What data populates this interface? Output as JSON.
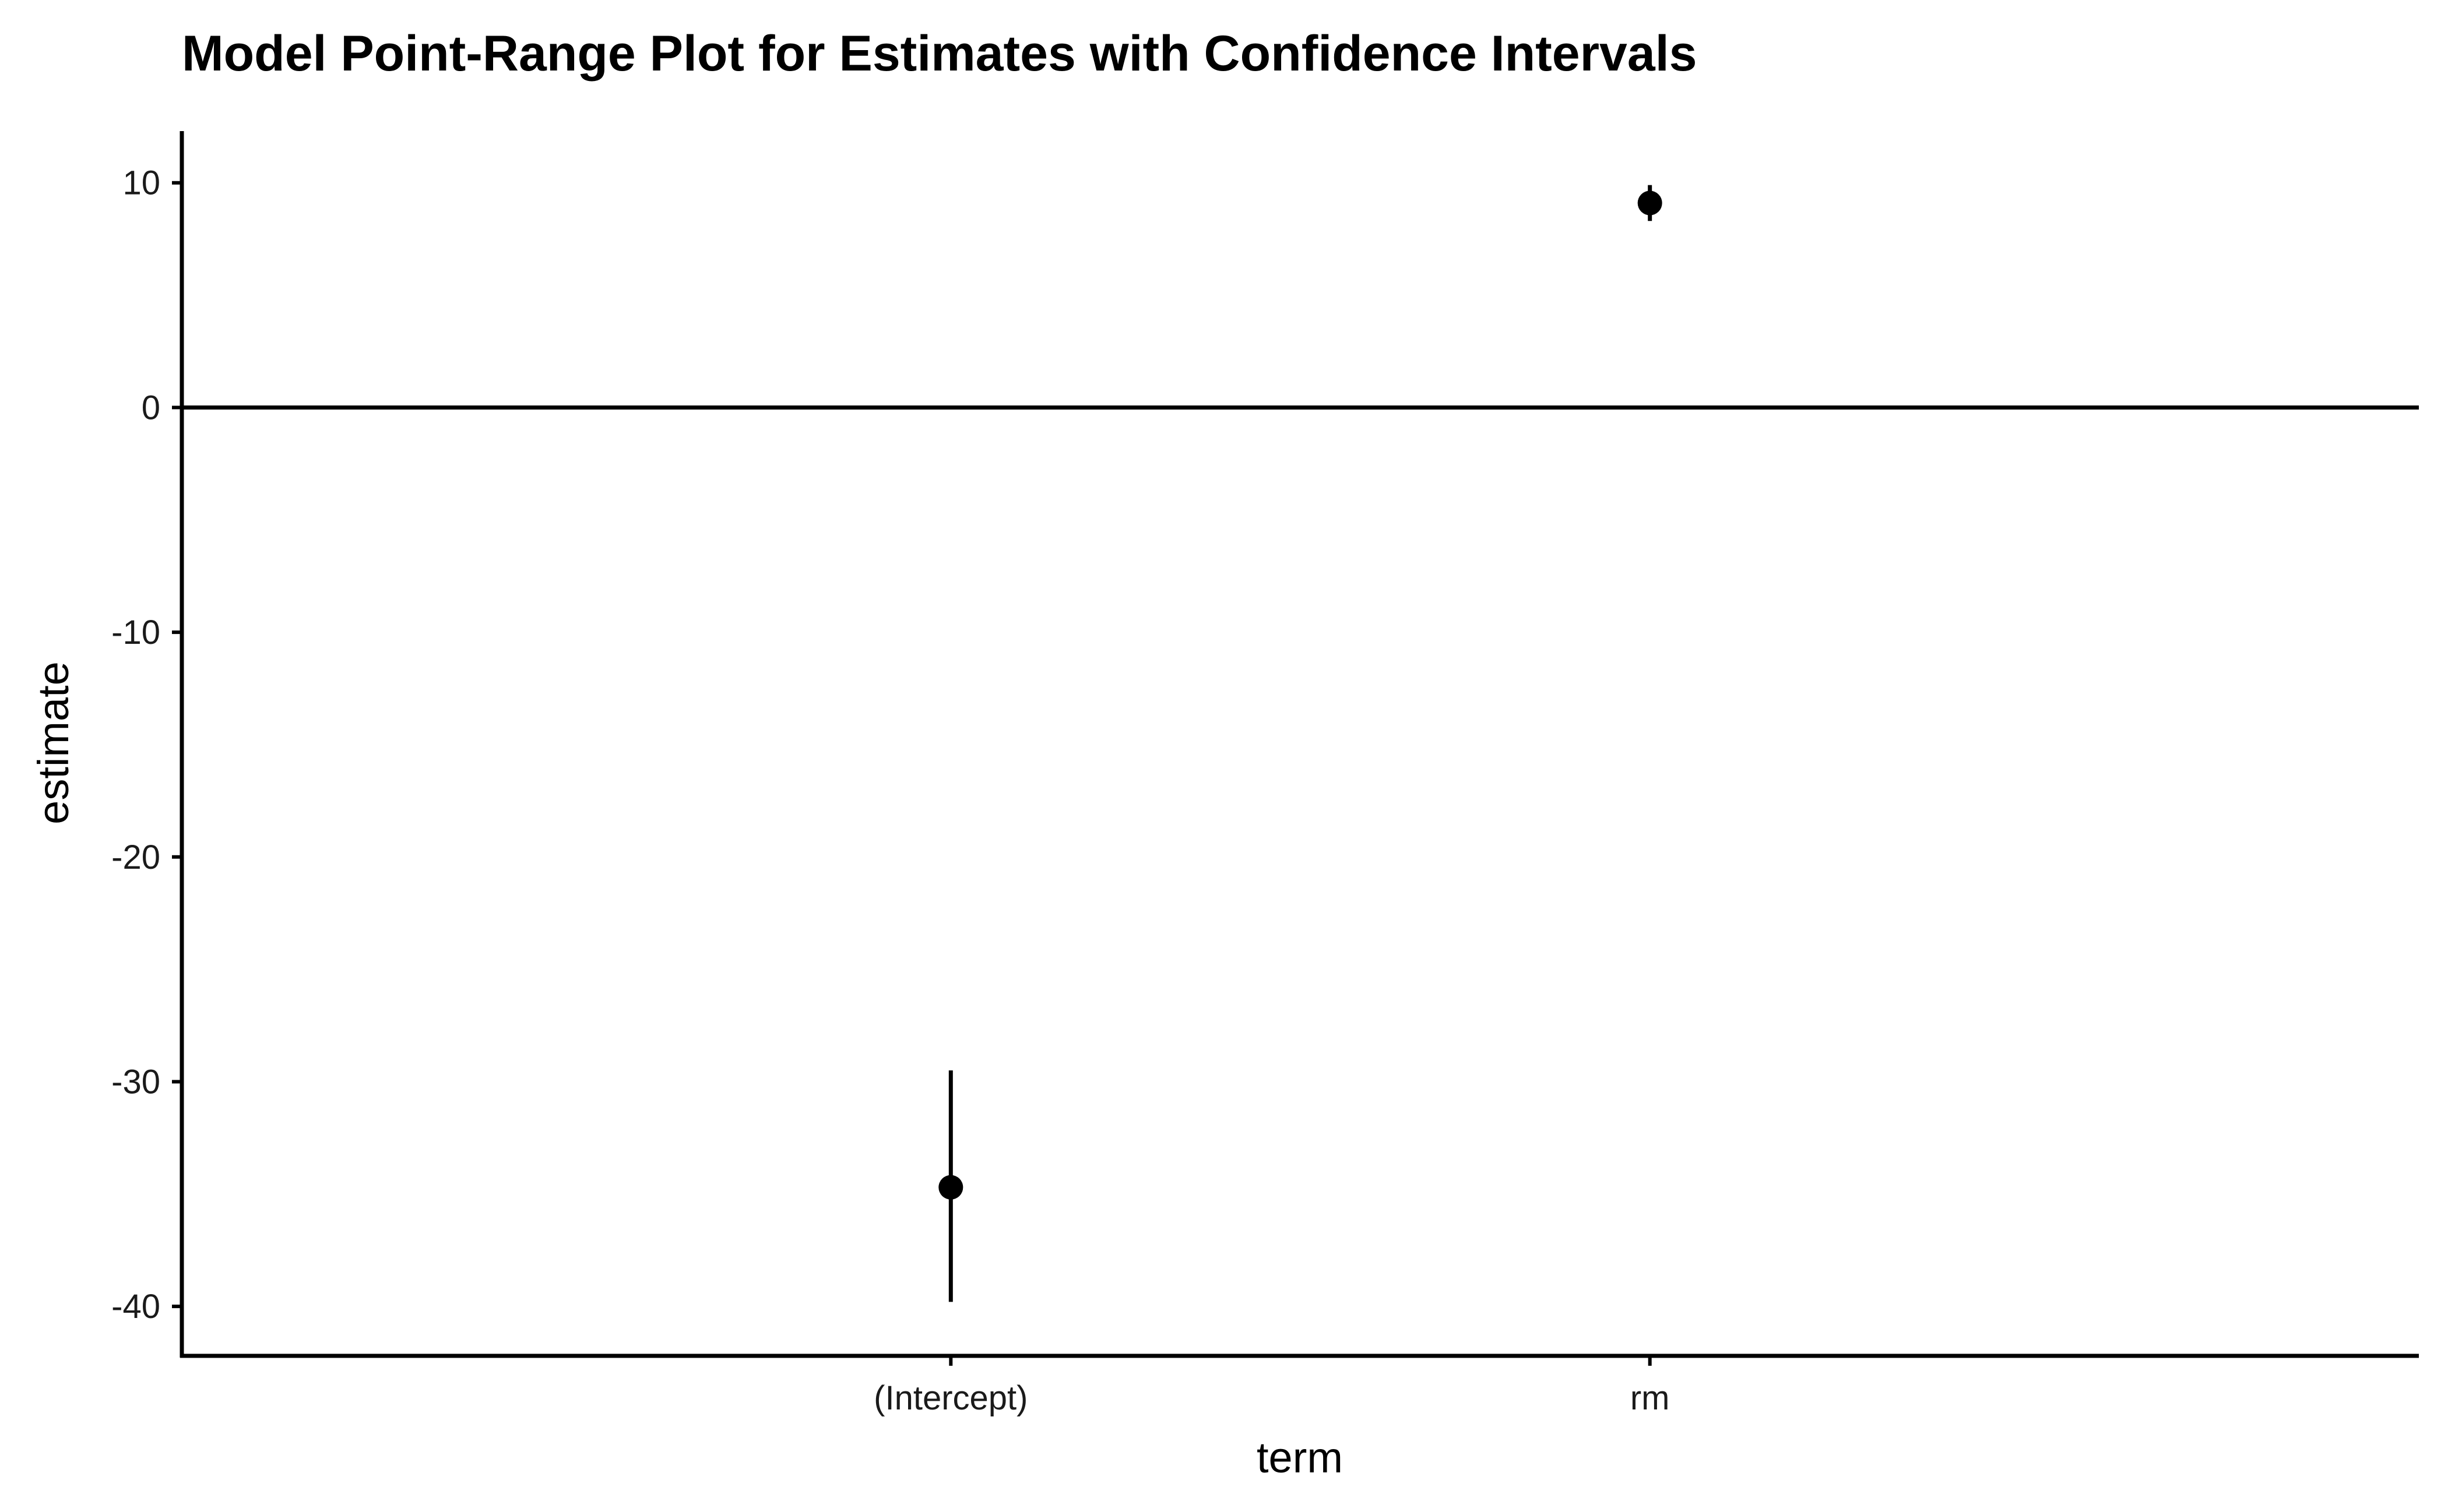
{
  "chart_data": {
    "type": "scatter",
    "subtype": "pointrange",
    "title": "Model Point-Range Plot for Estimates with Confidence Intervals",
    "xlabel": "term",
    "ylabel": "estimate",
    "categories": [
      "(Intercept)",
      "rm"
    ],
    "series": [
      {
        "points": [
          {
            "term": "(Intercept)",
            "estimate": -34.7,
            "conf_low": -39.8,
            "conf_high": -29.5
          },
          {
            "term": "rm",
            "estimate": 9.1,
            "conf_low": 8.3,
            "conf_high": 9.9
          }
        ]
      }
    ],
    "y_ticks": [
      10,
      0,
      -10,
      -20,
      -30,
      -40
    ],
    "y_tick_labels": [
      "10",
      "0",
      "-10",
      "-20",
      "-30",
      "-40"
    ],
    "ylim": [
      -42.2,
      12.3
    ],
    "reference_line": 0,
    "grid": false,
    "legend": "none",
    "colors": {
      "point": "#000000",
      "axis": "#000000",
      "text": "#1a1a1a"
    }
  }
}
